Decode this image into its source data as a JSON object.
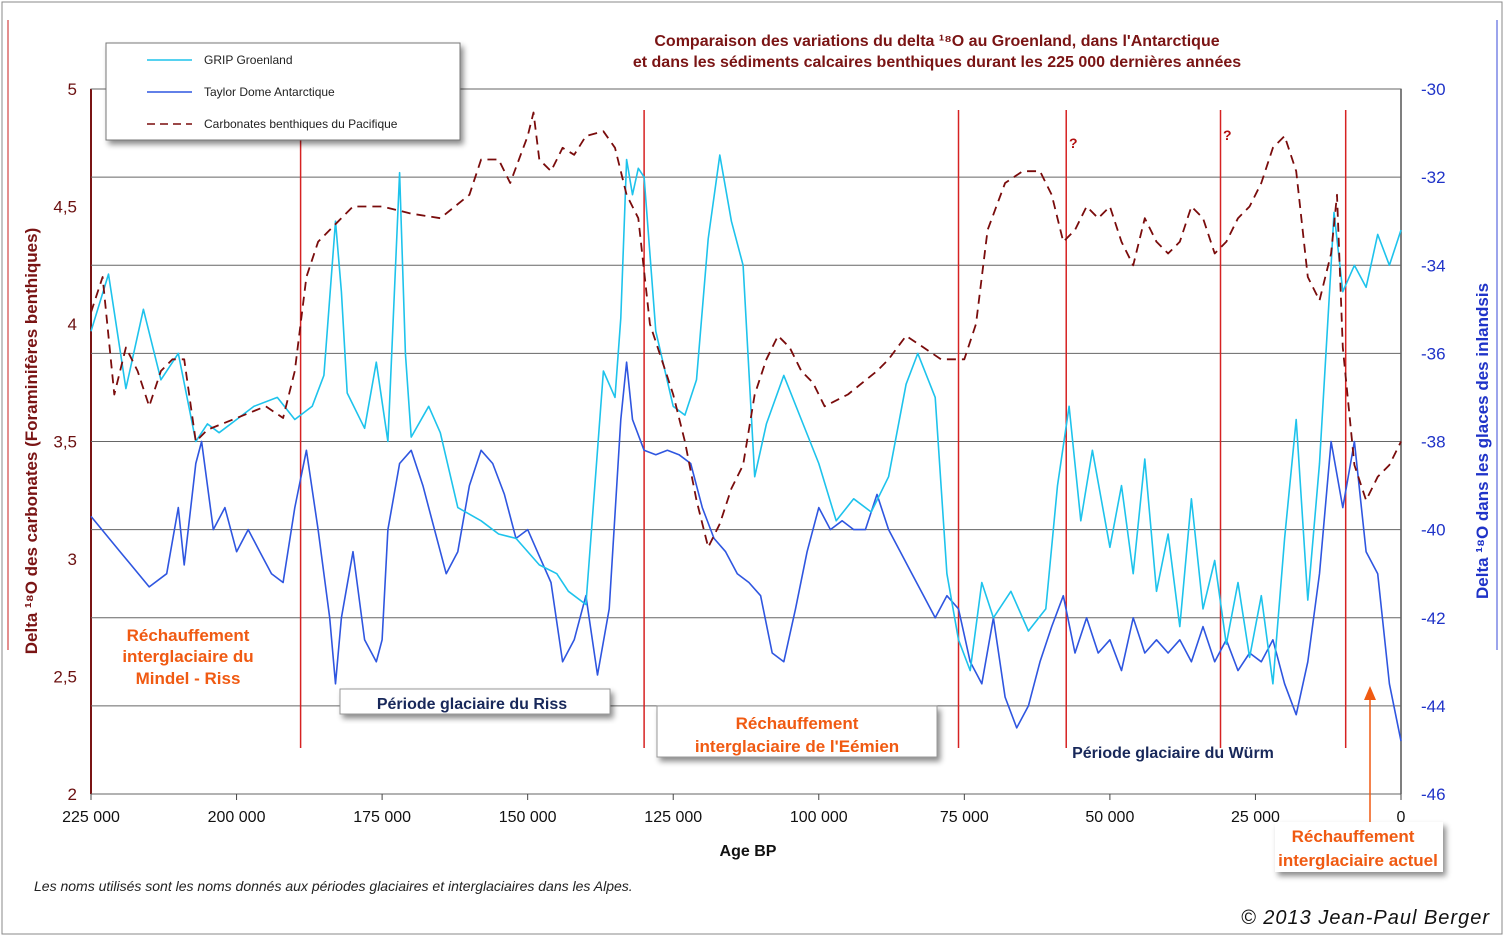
{
  "chart_data": {
    "type": "line",
    "title_line1": "Comparaison des variations du delta ¹⁸O au Groenland, dans l'Antarctique",
    "title_line2": "et dans les sédiments calcaires benthiques durant les 225 000 dernières années",
    "xlabel": "Age BP",
    "ylabel_left": "Delta ¹⁸O des carbonates (Foraminifères benthiques)",
    "ylabel_right": "Delta ¹⁸O dans les glaces des inlandsis",
    "xlim": [
      225000,
      0
    ],
    "ylim_left": [
      2,
      5
    ],
    "ylim_right": [
      -46,
      -30
    ],
    "x_ticks": [
      "225 000",
      "200 000",
      "175 000",
      "150 000",
      "125 000",
      "100 000",
      "75 000",
      "50 000",
      "25 000",
      "0"
    ],
    "y_left_ticks": [
      "5",
      "4,5",
      "4",
      "3,5",
      "3",
      "2,5",
      "2"
    ],
    "y_right_ticks": [
      "-30",
      "-32",
      "-34",
      "-36",
      "-38",
      "-40",
      "-42",
      "-44",
      "-46"
    ],
    "grid": "horizontal",
    "legend_placement": "top-left",
    "series": [
      {
        "name": "GRIP Groenland",
        "axis": "right",
        "color": "#1ec3ec",
        "x": [
          225000,
          222000,
          219000,
          216000,
          213000,
          210000,
          207000,
          205000,
          203000,
          200000,
          197000,
          193000,
          190000,
          187000,
          185000,
          183000,
          182000,
          181000,
          178000,
          176000,
          174000,
          172000,
          171000,
          170000,
          167000,
          165000,
          162000,
          158000,
          155000,
          152000,
          148000,
          145000,
          143000,
          140000,
          138000,
          137000,
          135000,
          134000,
          133000,
          132000,
          131000,
          130000,
          128000,
          125000,
          123000,
          121000,
          119000,
          117000,
          115000,
          113000,
          111000,
          109000,
          106000,
          103000,
          100000,
          97000,
          94000,
          91000,
          88000,
          85000,
          83000,
          80000,
          78000,
          76000,
          74000,
          72000,
          70000,
          67000,
          64000,
          61000,
          59000,
          57000,
          55000,
          53000,
          50000,
          48000,
          46000,
          44000,
          42000,
          40000,
          38000,
          36000,
          34000,
          32000,
          30000,
          28000,
          26000,
          24000,
          22000,
          20000,
          18000,
          16000,
          14000,
          12000,
          11500,
          10000,
          8000,
          6000,
          4000,
          2000,
          0
        ],
        "y": [
          -35.5,
          -34.2,
          -36.8,
          -35.0,
          -36.6,
          -36.0,
          -38.0,
          -37.6,
          -37.8,
          -37.5,
          -37.2,
          -37.0,
          -37.5,
          -37.2,
          -36.5,
          -33.0,
          -34.6,
          -36.9,
          -37.7,
          -36.2,
          -38.0,
          -31.9,
          -36.0,
          -37.9,
          -37.2,
          -37.8,
          -39.5,
          -39.8,
          -40.1,
          -40.2,
          -40.8,
          -41.0,
          -41.4,
          -41.7,
          -38.2,
          -36.4,
          -37.0,
          -35.2,
          -31.6,
          -32.4,
          -31.8,
          -32.0,
          -35.5,
          -37.2,
          -37.4,
          -36.6,
          -33.4,
          -31.5,
          -33.0,
          -34.0,
          -38.8,
          -37.6,
          -36.5,
          -37.5,
          -38.5,
          -39.8,
          -39.3,
          -39.6,
          -38.8,
          -36.7,
          -36.0,
          -37.0,
          -41.0,
          -42.5,
          -43.2,
          -41.2,
          -42.0,
          -41.4,
          -42.3,
          -41.8,
          -39.0,
          -37.2,
          -39.8,
          -38.2,
          -40.4,
          -39.0,
          -41.0,
          -38.4,
          -41.4,
          -40.1,
          -42.2,
          -39.3,
          -41.8,
          -40.7,
          -42.6,
          -41.2,
          -42.9,
          -41.5,
          -43.5,
          -40.2,
          -37.5,
          -41.6,
          -38.5,
          -34.0,
          -32.8,
          -34.6,
          -34.0,
          -34.5,
          -33.3,
          -34.0,
          -33.2
        ]
      },
      {
        "name": "Taylor Dome Antarctique",
        "axis": "right",
        "color": "#2f56e0",
        "x": [
          225000,
          220000,
          215000,
          212000,
          210000,
          209000,
          207000,
          206000,
          204000,
          202000,
          200000,
          198000,
          196000,
          194000,
          192000,
          190000,
          188000,
          186000,
          184000,
          183000,
          182000,
          180000,
          178000,
          176000,
          175000,
          174000,
          172000,
          170000,
          168000,
          166000,
          164000,
          162000,
          160000,
          158000,
          156000,
          154000,
          152000,
          150000,
          148000,
          146000,
          144000,
          142000,
          140000,
          138000,
          136000,
          134000,
          133000,
          132000,
          130000,
          128000,
          126000,
          124000,
          122000,
          120000,
          118000,
          116000,
          114000,
          112000,
          110000,
          108000,
          106000,
          104000,
          102000,
          100000,
          98000,
          96000,
          94000,
          92000,
          90000,
          88000,
          86000,
          84000,
          82000,
          80000,
          78000,
          76000,
          74000,
          72000,
          70000,
          68000,
          66000,
          64000,
          62000,
          60000,
          58000,
          56000,
          54000,
          52000,
          50000,
          48000,
          46000,
          44000,
          42000,
          40000,
          38000,
          36000,
          34000,
          32000,
          30000,
          28000,
          26000,
          24000,
          22000,
          20000,
          18000,
          16000,
          14000,
          12000,
          10000,
          8000,
          6000,
          4000,
          2000,
          0
        ],
        "y": [
          -39.7,
          -40.5,
          -41.3,
          -41.0,
          -39.5,
          -40.8,
          -38.5,
          -38.0,
          -40.0,
          -39.5,
          -40.5,
          -40.0,
          -40.5,
          -41.0,
          -41.2,
          -39.5,
          -38.2,
          -40.0,
          -42.0,
          -43.5,
          -42.0,
          -40.5,
          -42.5,
          -43.0,
          -42.5,
          -40.0,
          -38.5,
          -38.2,
          -39.0,
          -40.0,
          -41.0,
          -40.5,
          -39.0,
          -38.2,
          -38.5,
          -39.2,
          -40.2,
          -40.0,
          -40.6,
          -41.2,
          -43.0,
          -42.5,
          -41.5,
          -43.3,
          -41.8,
          -37.5,
          -36.2,
          -37.5,
          -38.2,
          -38.3,
          -38.2,
          -38.3,
          -38.5,
          -39.5,
          -40.2,
          -40.5,
          -41.0,
          -41.2,
          -41.5,
          -42.8,
          -43.0,
          -41.8,
          -40.5,
          -39.5,
          -40.0,
          -39.8,
          -40.0,
          -40.0,
          -39.2,
          -40.0,
          -40.5,
          -41.0,
          -41.5,
          -42.0,
          -41.5,
          -41.8,
          -43.0,
          -43.5,
          -42.0,
          -43.8,
          -44.5,
          -44.0,
          -43.0,
          -42.2,
          -41.5,
          -42.8,
          -42.0,
          -42.8,
          -42.5,
          -43.2,
          -42.0,
          -42.8,
          -42.5,
          -42.8,
          -42.5,
          -43.0,
          -42.2,
          -43.0,
          -42.5,
          -43.2,
          -42.8,
          -43.0,
          -42.5,
          -43.5,
          -44.2,
          -43.0,
          -41.0,
          -38.0,
          -39.5,
          -38.0,
          -40.5,
          -41.0,
          -43.5,
          -44.8
        ]
      },
      {
        "name": "Carbonates benthiques du Pacifique",
        "axis": "left",
        "color": "#7a0c0c",
        "x": [
          225000,
          223000,
          221000,
          219000,
          217000,
          215000,
          213000,
          211000,
          209000,
          207000,
          205000,
          200000,
          195000,
          192000,
          190000,
          188000,
          186000,
          184000,
          182000,
          180000,
          175000,
          170000,
          165000,
          160000,
          158000,
          155000,
          153000,
          150000,
          149000,
          148000,
          146000,
          144000,
          142000,
          140000,
          137000,
          135000,
          133000,
          131000,
          129000,
          127000,
          125000,
          123000,
          121000,
          119000,
          117000,
          115000,
          113000,
          111000,
          109000,
          107000,
          105000,
          103000,
          101000,
          99000,
          95000,
          90000,
          88000,
          85000,
          82000,
          79000,
          77000,
          75000,
          73000,
          71000,
          68000,
          65000,
          62000,
          60000,
          58000,
          56000,
          54000,
          52000,
          50000,
          48000,
          46000,
          44000,
          42000,
          40000,
          38000,
          36000,
          34000,
          32000,
          30000,
          28000,
          26000,
          24000,
          22000,
          20000,
          18000,
          16000,
          14000,
          12000,
          11000,
          10000,
          8000,
          6000,
          4000,
          2000,
          0
        ],
        "y": [
          4.05,
          4.2,
          3.7,
          3.9,
          3.8,
          3.65,
          3.8,
          3.85,
          3.85,
          3.5,
          3.55,
          3.6,
          3.65,
          3.6,
          3.8,
          4.2,
          4.35,
          4.4,
          4.45,
          4.5,
          4.5,
          4.47,
          4.45,
          4.55,
          4.7,
          4.7,
          4.6,
          4.8,
          4.9,
          4.7,
          4.65,
          4.75,
          4.72,
          4.8,
          4.82,
          4.75,
          4.55,
          4.45,
          4.0,
          3.85,
          3.7,
          3.5,
          3.25,
          3.05,
          3.15,
          3.3,
          3.4,
          3.7,
          3.85,
          3.95,
          3.9,
          3.8,
          3.75,
          3.65,
          3.7,
          3.8,
          3.85,
          3.95,
          3.9,
          3.85,
          3.85,
          3.85,
          4.0,
          4.4,
          4.6,
          4.65,
          4.65,
          4.55,
          4.35,
          4.4,
          4.5,
          4.45,
          4.5,
          4.35,
          4.25,
          4.45,
          4.35,
          4.3,
          4.35,
          4.5,
          4.45,
          4.3,
          4.35,
          4.45,
          4.5,
          4.6,
          4.75,
          4.8,
          4.65,
          4.2,
          4.1,
          4.3,
          4.55,
          3.9,
          3.4,
          3.25,
          3.35,
          3.4,
          3.5
        ]
      }
    ],
    "period_lines_x": [
      189000,
      130000,
      76000,
      57500,
      31000,
      9500
    ],
    "question_marks": [
      {
        "x": 57500,
        "label": "?"
      },
      {
        "x": 31000,
        "label": "?"
      }
    ],
    "annotations": {
      "mindel_riss": [
        "Réchauffement",
        "interglaciaire du",
        "Mindel - Riss"
      ],
      "riss": "Période glaciaire du Riss",
      "eemien": [
        "Réchauffement",
        "interglaciaire de l'Eémien"
      ],
      "wurm": "Période glaciaire du Würm",
      "actuel": [
        "Réchauffement",
        "interglaciaire actuel"
      ]
    },
    "footnote": "Les noms utilisés sont les noms donnés aux périodes glaciaires et interglaciaires dans les Alpes.",
    "copyright": "© 2013 Jean-Paul Berger"
  }
}
